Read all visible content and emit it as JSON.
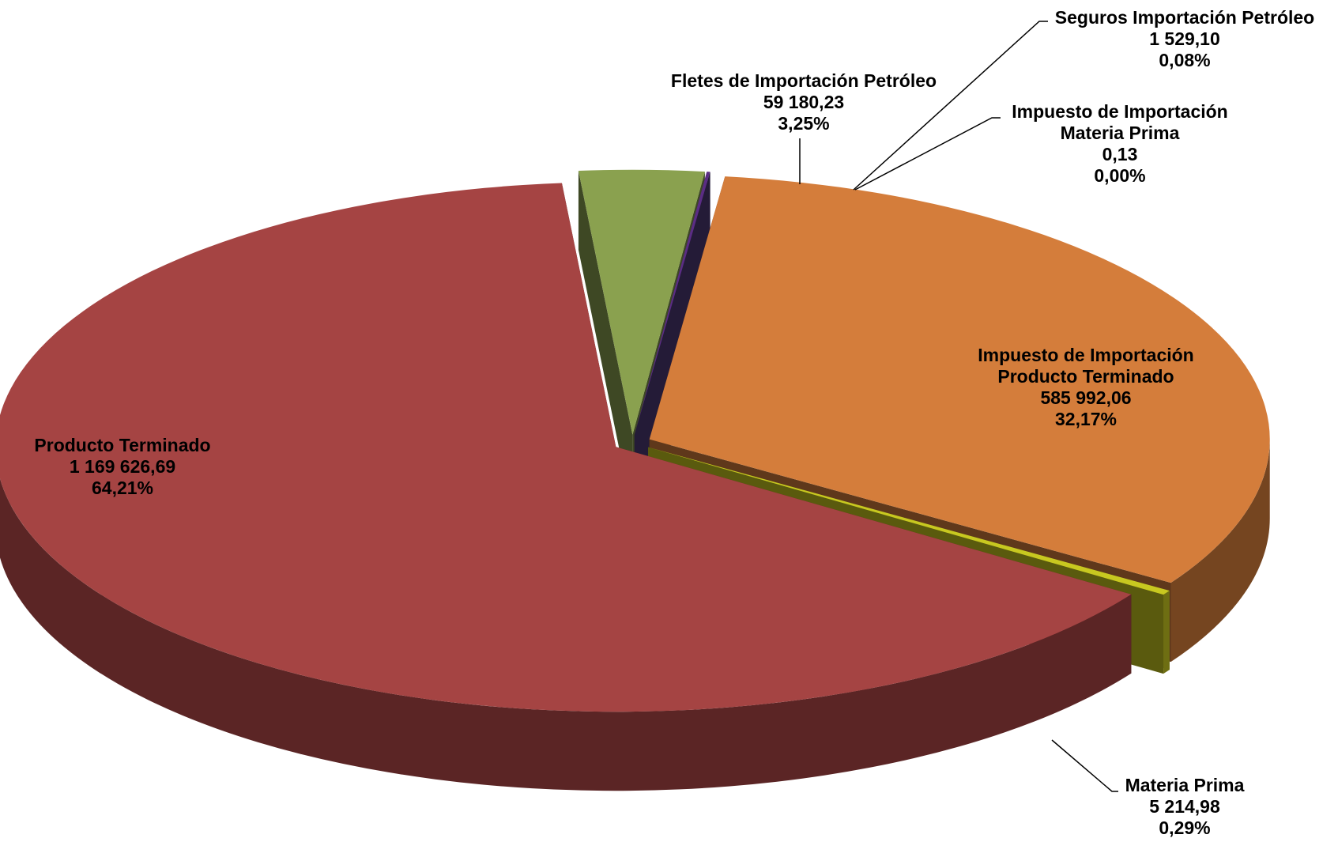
{
  "chart_data": {
    "type": "pie3d",
    "categories": [
      "Fletes de Importación Petróleo",
      "Seguros Importación Petróleo",
      "Impuesto de Importación Materia Prima",
      "Impuesto de Importación Producto Terminado",
      "Materia Prima",
      "Producto Terminado"
    ],
    "values": [
      59180.23,
      1529.1,
      0.13,
      585992.06,
      5214.98,
      1169626.69
    ],
    "value_labels": [
      "59 180,23",
      "1 529,10",
      "0,13",
      "585 992,06",
      "5 214,98",
      "1 169 626,69"
    ],
    "percentages": [
      3.25,
      0.08,
      0.0,
      32.17,
      0.29,
      64.21
    ],
    "percentage_labels": [
      "3,25%",
      "0,08%",
      "0,00%",
      "32,17%",
      "0,29%",
      "64,21%"
    ],
    "colors": [
      "#8aa14f",
      "#5b2d84",
      "#4f3b7a",
      "#d47d3b",
      "#c8c820",
      "#a54443"
    ]
  }
}
